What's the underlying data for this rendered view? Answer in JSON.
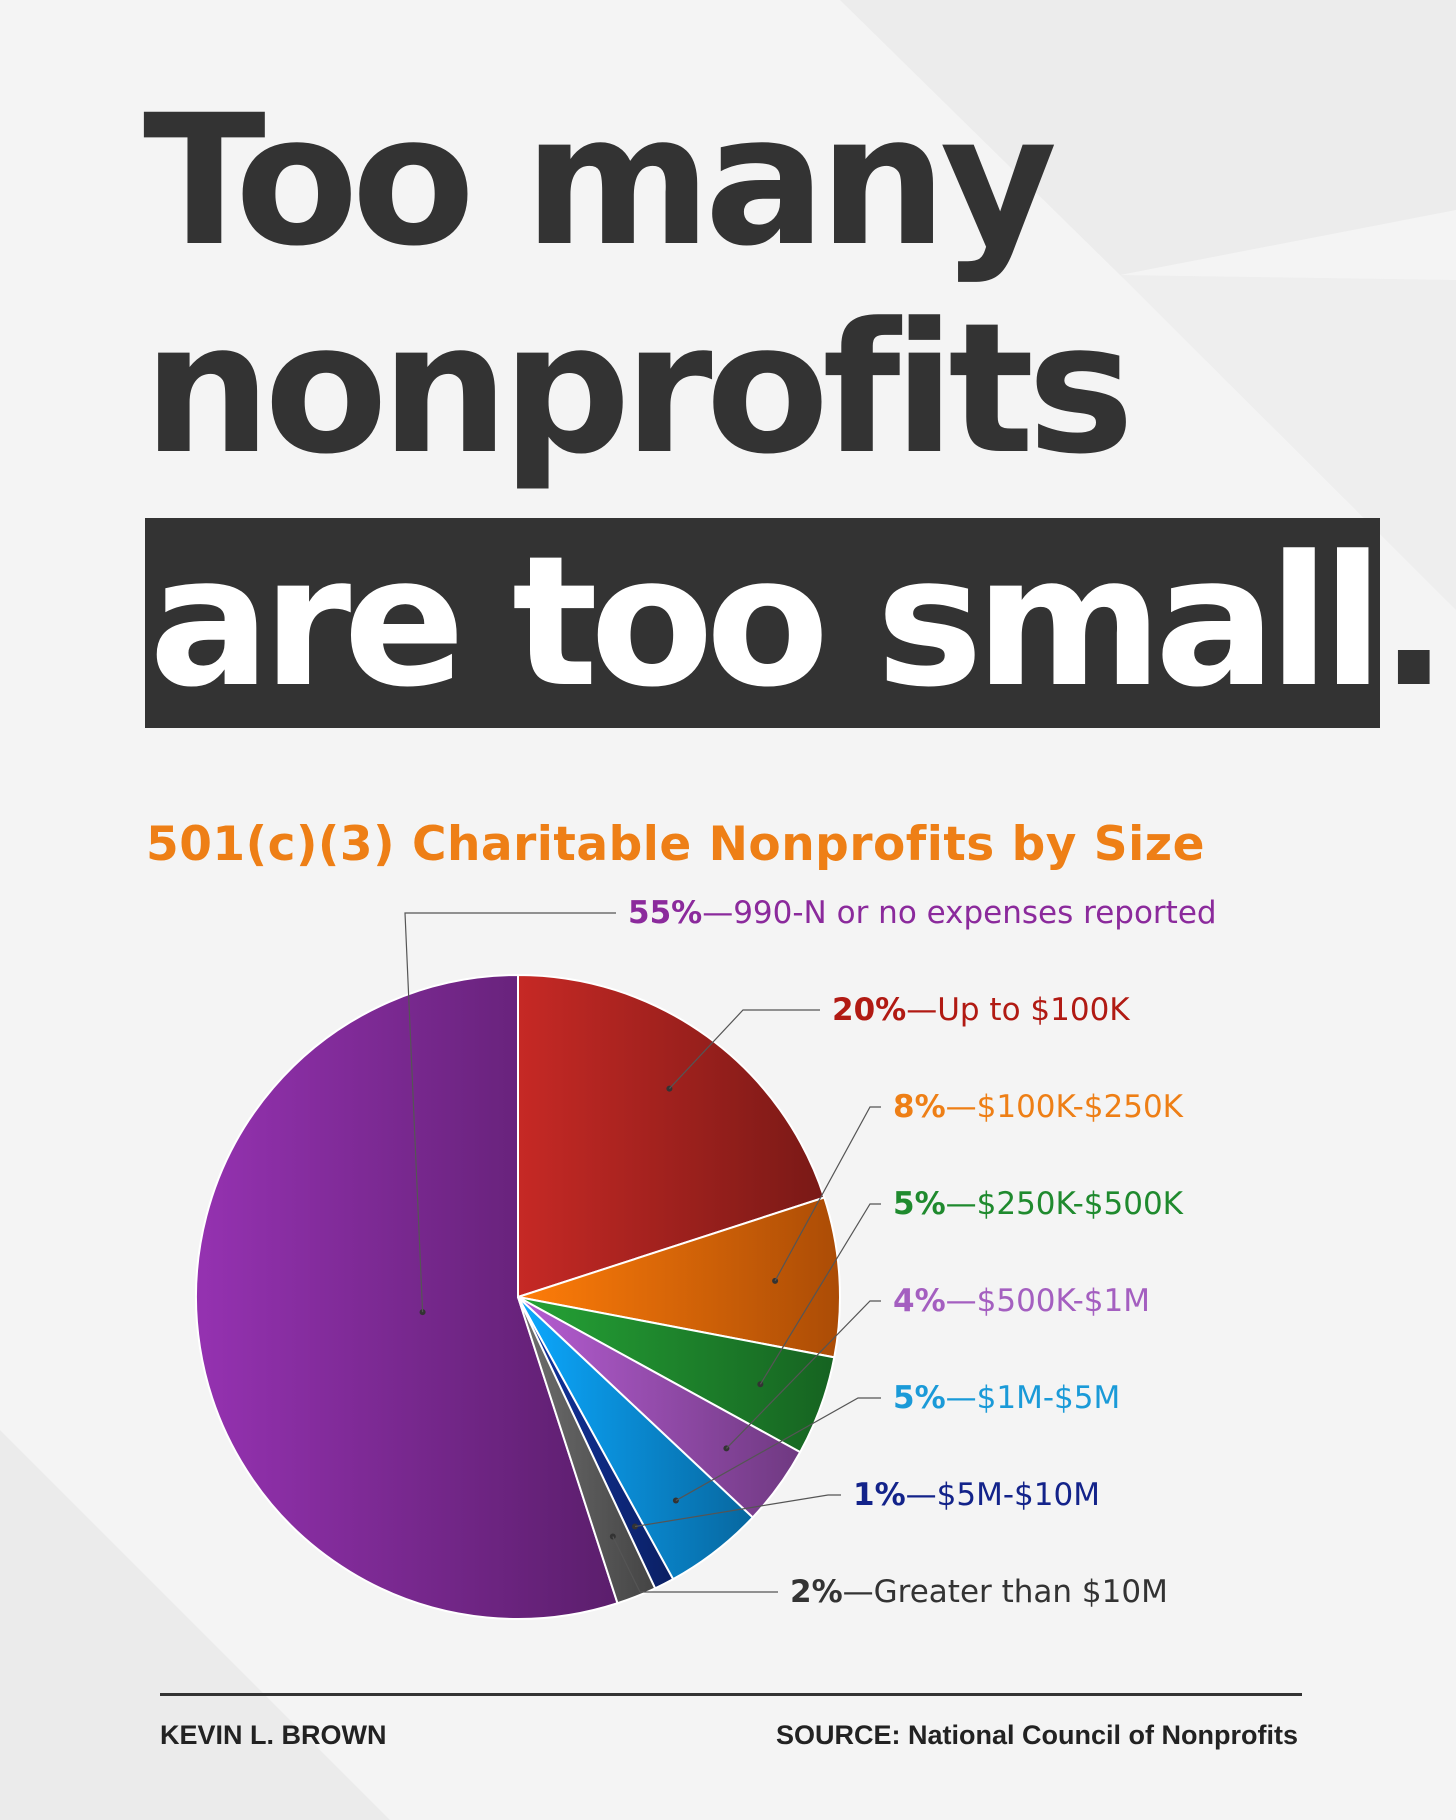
{
  "headline": {
    "line1": "Too many",
    "line2": "nonprofits",
    "line3_highlight": "are too small",
    "line3_end": "."
  },
  "chart_data": {
    "type": "pie",
    "title": "501(c)(3) Charitable Nonprofits by Size",
    "slices": [
      {
        "percent": 55,
        "pct_label": "55%",
        "desc": "—990-N or no expenses reported",
        "color": "#7e2a96",
        "label_color": "#8b2a9c"
      },
      {
        "percent": 20,
        "pct_label": "20%",
        "desc": "—Up to $100K",
        "color": "#a8231f",
        "label_color": "#b11a13"
      },
      {
        "percent": 8,
        "pct_label": "8%",
        "desc": "—$100K-$250K",
        "color": "#ee6a08",
        "label_color": "#ee7f16"
      },
      {
        "percent": 5,
        "pct_label": "5%",
        "desc": "—$250K-$500K",
        "color": "#1f8a2e",
        "label_color": "#1f8a2e"
      },
      {
        "percent": 4,
        "pct_label": "4%",
        "desc": "—$500K-$1M",
        "color": "#9a4fb3",
        "label_color": "#a45fc0"
      },
      {
        "percent": 5,
        "pct_label": "5%",
        "desc": "—$1M-$5M",
        "color": "#0a8fdd",
        "label_color": "#1a9ad8"
      },
      {
        "percent": 1,
        "pct_label": "1%",
        "desc": "—$5M-$10M",
        "color": "#0f2c8a",
        "label_color": "#13238a"
      },
      {
        "percent": 2,
        "pct_label": "2%",
        "desc": "—Greater than $10M",
        "color": "#5e5e5e",
        "label_color": "#333333"
      }
    ]
  },
  "footer": {
    "author": "KEVIN L. BROWN",
    "source": "SOURCE: National Council of Nonprofits"
  }
}
